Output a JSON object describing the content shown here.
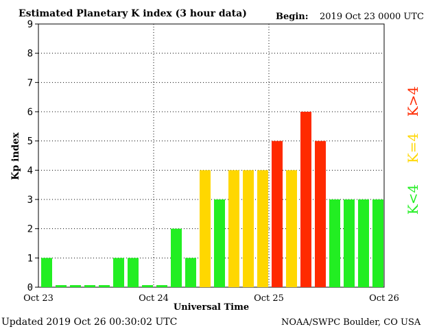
{
  "header": {
    "title": "Estimated Planetary K index (3 hour data)",
    "begin_label": "Begin:",
    "begin_value": "2019 Oct 23 0000 UTC"
  },
  "footer": {
    "updated": "Updated 2019 Oct 26 00:30:02 UTC",
    "source": "NOAA/SWPC Boulder, CO USA"
  },
  "legend": {
    "high": "K>4",
    "mid": "K=4",
    "low": "K<4"
  },
  "colors": {
    "low": "#22ee22",
    "mid": "#ffd700",
    "high": "#ff2a00"
  },
  "chart_data": {
    "type": "bar",
    "title": "Estimated Planetary K index (3 hour data)",
    "xlabel": "Universal Time",
    "ylabel": "Kp index",
    "ylim": [
      0,
      9
    ],
    "yticks": [
      "0",
      "1",
      "2",
      "3",
      "4",
      "5",
      "6",
      "7",
      "8",
      "9"
    ],
    "xticks": [
      "Oct 23",
      "Oct 24",
      "Oct 25",
      "Oct 26"
    ],
    "grid": true,
    "values": [
      1,
      0,
      0,
      0,
      0,
      1,
      1,
      0,
      0,
      2,
      1,
      4,
      3,
      4,
      4,
      4,
      5,
      4,
      6,
      5,
      3,
      3,
      3,
      3
    ]
  }
}
